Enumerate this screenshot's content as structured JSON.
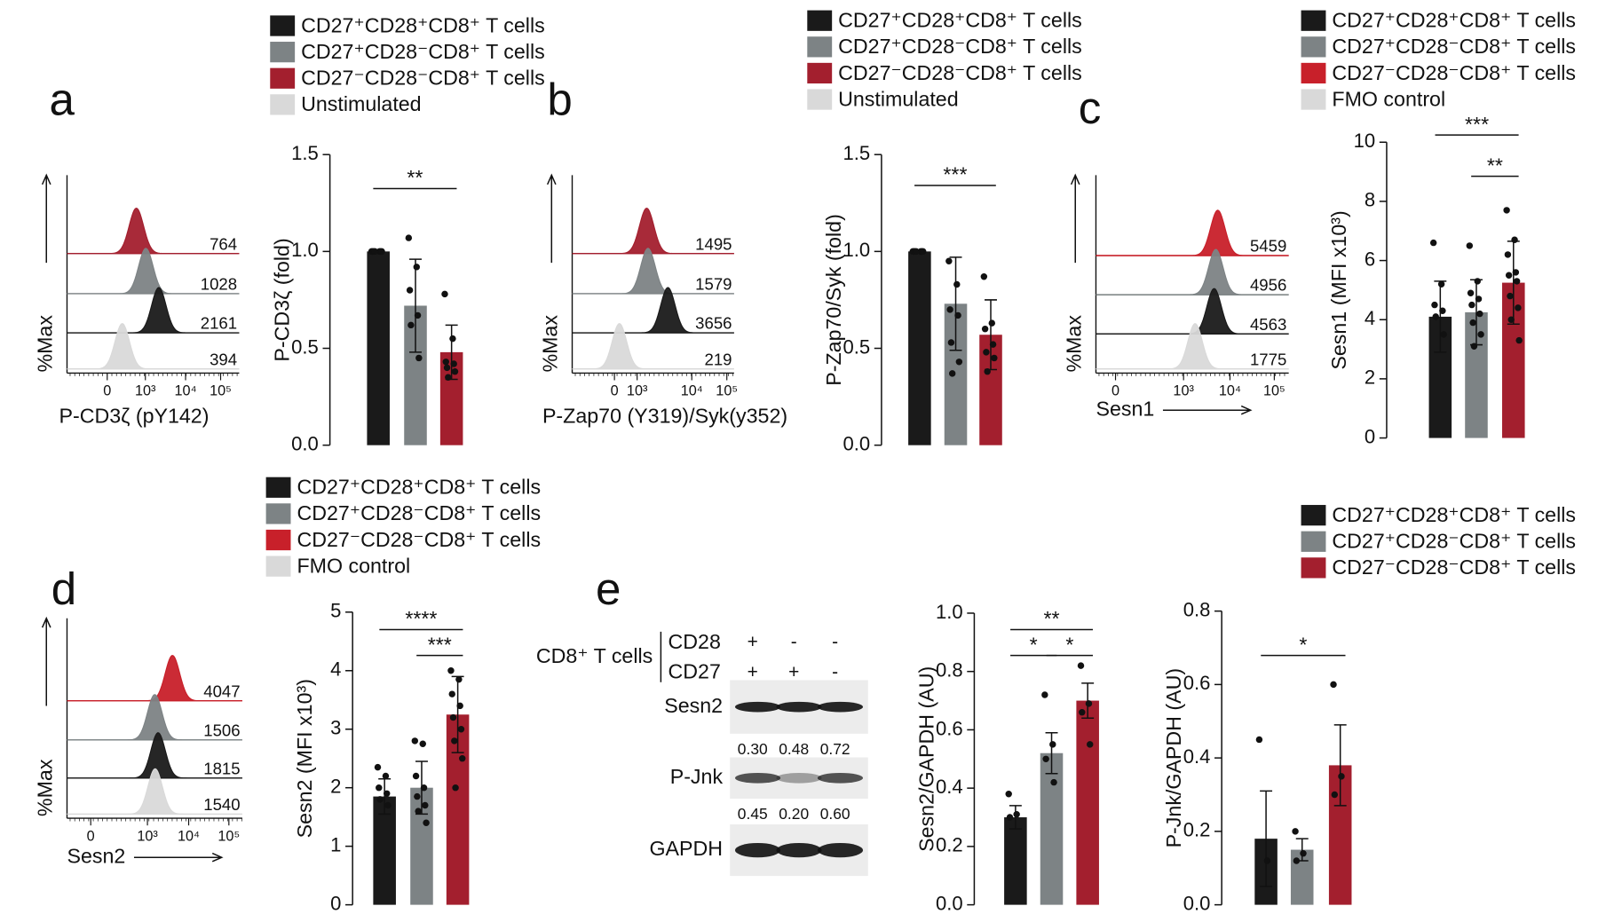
{
  "chart_data": [
    {
      "type": "flow-histogram",
      "panel": "a",
      "ylabel": "%Max",
      "xlabel": "P-CD3ζ (pY142)",
      "xticks": [
        0,
        {
          "value": 1000,
          "label": "10³"
        },
        {
          "value": 10000,
          "label": "10⁴"
        },
        {
          "value": 100000,
          "label": "10⁵"
        }
      ],
      "series": [
        {
          "name": "CD27⁺CD28⁺CD8⁺ T cells",
          "color": "#1a1a1a",
          "values": [
            2161
          ]
        },
        {
          "name": "CD27⁺CD28⁻CD8⁺ T cells",
          "color": "#7d8385",
          "values": [
            1028
          ]
        },
        {
          "name": "CD27⁻CD28⁻CD8⁺ T cells",
          "color": "#a31f2e",
          "values": [
            764
          ]
        },
        {
          "name": "Unstimulated",
          "color": "#d9d9d9",
          "values": [
            394
          ]
        }
      ]
    },
    {
      "type": "bar",
      "ylabel": "P-CD3ζ (fold)",
      "ylim": [
        0,
        1.5
      ],
      "yticks": [
        {
          "value": 0,
          "label": "0.0"
        },
        0.5,
        {
          "value": 1,
          "label": "1.0"
        },
        1.5
      ],
      "series": [
        {
          "color": "#1a1a1a",
          "values": [
            1.0
          ],
          "errors": [
            0
          ],
          "points": [
            1,
            1,
            1,
            1,
            1,
            1,
            1
          ]
        },
        {
          "color": "#7d8385",
          "values": [
            0.72
          ],
          "errors": [
            0.24
          ],
          "points": [
            1.07,
            0.92,
            0.8,
            0.67,
            0.62,
            0.45
          ]
        },
        {
          "color": "#a31f2e",
          "values": [
            0.48
          ],
          "errors": [
            0.14
          ],
          "points": [
            0.78,
            0.55,
            0.43,
            0.42,
            0.4,
            0.38,
            0.35
          ]
        }
      ],
      "brackets": [
        {
          "label": "**",
          "groups": [
            0,
            2
          ]
        }
      ]
    },
    {
      "type": "flow-histogram",
      "panel": "b",
      "ylabel": "%Max",
      "xlabel": "P-Zap70 (Y319)/Syk(y352)",
      "xticks": [
        0,
        {
          "value": 1000,
          "label": "10³"
        },
        {
          "value": 10000,
          "label": "10⁴"
        },
        {
          "value": 100000,
          "label": "10⁵"
        }
      ],
      "series": [
        {
          "name": "CD27⁺CD28⁺CD8⁺ T cells",
          "color": "#1a1a1a",
          "values": [
            3656
          ]
        },
        {
          "name": "CD27⁺CD28⁻CD8⁺ T cells",
          "color": "#7d8385",
          "values": [
            1579
          ]
        },
        {
          "name": "CD27⁻CD28⁻CD8⁺ T cells",
          "color": "#a31f2e",
          "values": [
            1495
          ]
        },
        {
          "name": "Unstimulated",
          "color": "#d9d9d9",
          "values": [
            219
          ]
        }
      ]
    },
    {
      "type": "bar",
      "ylabel": "P-Zap70/Syk (fold)",
      "ylim": [
        0,
        1.5
      ],
      "yticks": [
        {
          "value": 0,
          "label": "0.0"
        },
        0.5,
        {
          "value": 1,
          "label": "1.0"
        },
        1.5
      ],
      "series": [
        {
          "color": "#1a1a1a",
          "values": [
            1.0
          ],
          "errors": [
            0
          ],
          "points": [
            1,
            1,
            1,
            1,
            1,
            1,
            1
          ]
        },
        {
          "color": "#7d8385",
          "values": [
            0.73
          ],
          "errors": [
            0.24
          ],
          "points": [
            0.95,
            0.83,
            0.7,
            0.67,
            0.53,
            0.43,
            0.37
          ]
        },
        {
          "color": "#a31f2e",
          "values": [
            0.57
          ],
          "errors": [
            0.18
          ],
          "points": [
            0.87,
            0.63,
            0.6,
            0.52,
            0.48,
            0.45,
            0.38
          ]
        }
      ],
      "brackets": [
        {
          "label": "***",
          "groups": [
            0,
            2
          ]
        }
      ]
    },
    {
      "type": "flow-histogram",
      "panel": "c",
      "ylabel": "%Max",
      "xlabel": "Sesn1",
      "xticks": [
        0,
        {
          "value": 1000,
          "label": "10³"
        },
        {
          "value": 10000,
          "label": "10⁴"
        },
        {
          "value": 100000,
          "label": "10⁵"
        }
      ],
      "series": [
        {
          "name": "CD27⁺CD28⁺CD8⁺ T cells",
          "color": "#1a1a1a",
          "values": [
            4563
          ]
        },
        {
          "name": "CD27⁺CD28⁻CD8⁺ T cells",
          "color": "#7d8385",
          "values": [
            4956
          ]
        },
        {
          "name": "CD27⁻CD28⁻CD8⁺ T cells",
          "color": "#c8202a",
          "values": [
            5459
          ]
        },
        {
          "name": "FMO control",
          "color": "#d9d9d9",
          "values": [
            1775
          ]
        }
      ]
    },
    {
      "type": "bar",
      "ylabel": "Sesn1 (MFI x10³)",
      "ylim": [
        0,
        10
      ],
      "yticks": [
        0,
        2,
        4,
        6,
        8,
        10
      ],
      "series": [
        {
          "color": "#1a1a1a",
          "values": [
            4.1
          ],
          "errors": [
            1.2
          ],
          "points": [
            6.6,
            5.2,
            4.5,
            4.3,
            4.1,
            3.5
          ]
        },
        {
          "color": "#7d8385",
          "values": [
            4.25
          ],
          "errors": [
            1.1
          ],
          "points": [
            6.5,
            5.3,
            4.9,
            4.7,
            4.5,
            4.2,
            3.9,
            3.5,
            3.1
          ]
        },
        {
          "color": "#a31f2e",
          "values": [
            5.25
          ],
          "errors": [
            1.4
          ],
          "points": [
            7.7,
            6.7,
            6.2,
            5.6,
            5.5,
            5.3,
            4.8,
            4.4,
            4.0,
            3.3
          ]
        }
      ],
      "brackets": [
        {
          "label": "***",
          "groups": [
            0,
            2
          ]
        },
        {
          "label": "**",
          "groups": [
            1,
            2
          ]
        }
      ]
    },
    {
      "type": "flow-histogram",
      "panel": "d",
      "ylabel": "%Max",
      "xlabel": "Sesn2",
      "xticks": [
        0,
        {
          "value": 1000,
          "label": "10³"
        },
        {
          "value": 10000,
          "label": "10⁴"
        },
        {
          "value": 100000,
          "label": "10⁵"
        }
      ],
      "series": [
        {
          "name": "CD27⁺CD28⁺CD8⁺ T cells",
          "color": "#1a1a1a",
          "values": [
            1815
          ]
        },
        {
          "name": "CD27⁺CD28⁻CD8⁺ T cells",
          "color": "#7d8385",
          "values": [
            1506
          ]
        },
        {
          "name": "CD27⁻CD28⁻CD8⁺ T cells",
          "color": "#c8202a",
          "values": [
            4047
          ]
        },
        {
          "name": "FMO control",
          "color": "#d9d9d9",
          "values": [
            1540
          ]
        }
      ]
    },
    {
      "type": "bar",
      "ylabel": "Sesn2 (MFI x10³)",
      "ylim": [
        0,
        5
      ],
      "yticks": [
        0,
        1,
        2,
        3,
        4,
        5
      ],
      "series": [
        {
          "color": "#1a1a1a",
          "values": [
            1.85
          ],
          "errors": [
            0.3
          ],
          "points": [
            2.35,
            2.2,
            2.0,
            1.9,
            1.8,
            1.7
          ]
        },
        {
          "color": "#7d8385",
          "values": [
            2.0
          ],
          "errors": [
            0.45
          ],
          "points": [
            2.8,
            2.75,
            2.2,
            2.0,
            1.85,
            1.7,
            1.6,
            1.4
          ]
        },
        {
          "color": "#a31f2e",
          "values": [
            3.25
          ],
          "errors": [
            0.65
          ],
          "points": [
            4.0,
            3.85,
            3.6,
            3.4,
            3.2,
            3.0,
            2.8,
            2.5,
            2.0
          ]
        }
      ],
      "brackets": [
        {
          "label": "****",
          "groups": [
            0,
            2
          ]
        },
        {
          "label": "***",
          "groups": [
            1,
            2
          ]
        }
      ]
    },
    {
      "type": "bar",
      "panel": "e",
      "ylabel": "Sesn2/GAPDH (AU)",
      "ylim": [
        0,
        1
      ],
      "yticks": [
        {
          "value": 0,
          "label": "0.0"
        },
        0.2,
        0.4,
        0.6,
        0.8,
        {
          "value": 1,
          "label": "1.0"
        }
      ],
      "series": [
        {
          "name": "CD27⁺CD28⁺CD8⁺ T cells",
          "color": "#1a1a1a",
          "values": [
            0.3
          ],
          "errors": [
            0.04
          ],
          "points": [
            0.38,
            0.31,
            0.3
          ]
        },
        {
          "name": "CD27⁺CD28⁻CD8⁺ T cells",
          "color": "#7d8385",
          "values": [
            0.52
          ],
          "errors": [
            0.07
          ],
          "points": [
            0.72,
            0.55,
            0.5,
            0.42
          ]
        },
        {
          "name": "CD27⁻CD28⁻CD8⁺ T cells",
          "color": "#a31f2e",
          "values": [
            0.7
          ],
          "errors": [
            0.06
          ],
          "points": [
            0.82,
            0.69,
            0.66,
            0.55
          ]
        }
      ],
      "brackets": [
        {
          "label": "**",
          "groups": [
            0,
            2
          ]
        },
        {
          "label": "*",
          "groups": [
            0,
            1
          ]
        },
        {
          "label": "*",
          "groups": [
            1,
            2
          ]
        }
      ]
    },
    {
      "type": "bar",
      "ylabel": "P-Jnk/GAPDH (AU)",
      "ylim": [
        0,
        0.8
      ],
      "yticks": [
        {
          "value": 0,
          "label": "0.0"
        },
        0.2,
        0.4,
        0.6,
        0.8
      ],
      "series": [
        {
          "color": "#1a1a1a",
          "values": [
            0.18
          ],
          "errors": [
            0.13
          ],
          "points": [
            0.45,
            0.12
          ]
        },
        {
          "color": "#7d8385",
          "values": [
            0.15
          ],
          "errors": [
            0.03
          ],
          "points": [
            0.2,
            0.14,
            0.12
          ]
        },
        {
          "color": "#a31f2e",
          "values": [
            0.38
          ],
          "errors": [
            0.11
          ],
          "points": [
            0.6,
            0.35,
            0.3
          ]
        }
      ],
      "brackets": [
        {
          "label": "*",
          "groups": [
            0,
            2
          ]
        }
      ]
    }
  ],
  "blot": {
    "header": "CD8⁺ T cells",
    "markers": [
      "CD28",
      "CD27"
    ],
    "signs": [
      [
        "+",
        "-",
        "-"
      ],
      [
        "+",
        "+",
        "-"
      ]
    ],
    "rows": [
      {
        "label": "Sesn2",
        "quant": [
          "0.30",
          "0.48",
          "0.72"
        ]
      },
      {
        "label": "P-Jnk",
        "quant": [
          "0.45",
          "0.20",
          "0.60"
        ]
      },
      {
        "label": "GAPDH"
      }
    ]
  }
}
